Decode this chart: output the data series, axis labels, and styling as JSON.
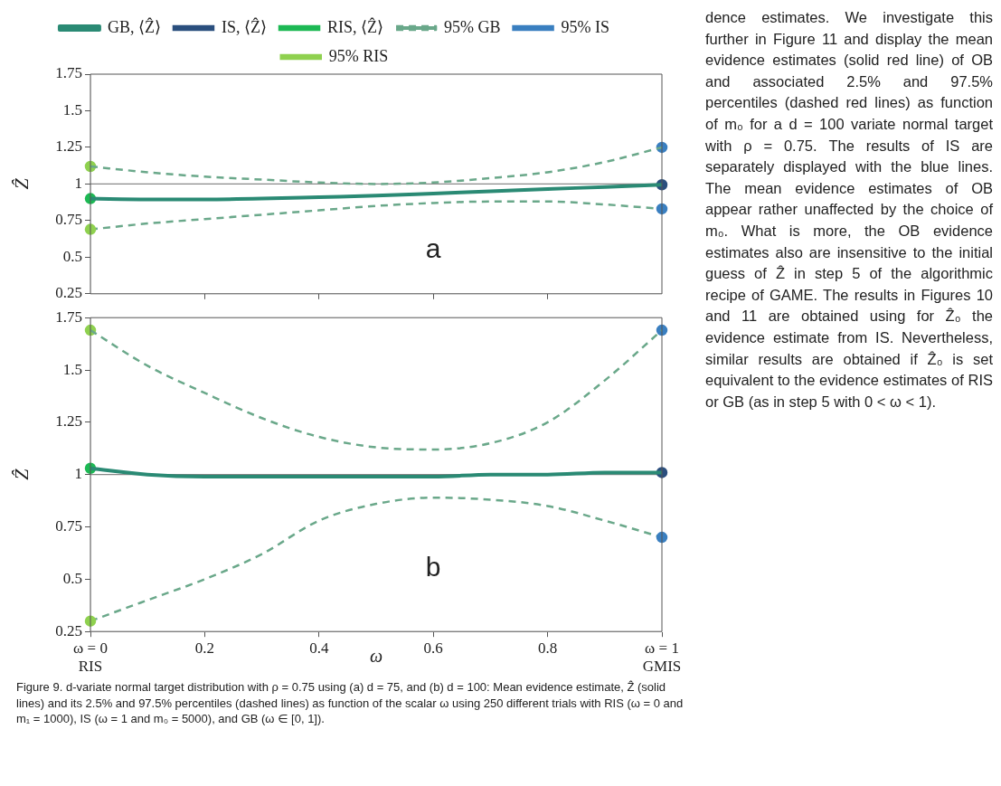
{
  "chart_data": [
    {
      "type": "line",
      "x": [
        0,
        0.1,
        0.2,
        0.3,
        0.4,
        0.5,
        0.6,
        0.7,
        0.8,
        0.9,
        1
      ],
      "ylabel": "Ẑ",
      "xlim": [
        0,
        1
      ],
      "ylim": [
        0.25,
        1.75
      ],
      "xticks": [
        {
          "value": 0.2,
          "label": null
        },
        {
          "value": 0.4,
          "label": null
        },
        {
          "value": 0.6,
          "label": null
        },
        {
          "value": 0.8,
          "label": null
        }
      ],
      "yticks": [
        0.25,
        0.5,
        0.75,
        1,
        1.25,
        1.5,
        1.75
      ],
      "tick_labels": "y",
      "grid": false,
      "legend": "top",
      "ref_lines": [
        {
          "axis": "y",
          "value": 1,
          "color": "#888888"
        }
      ],
      "annotations": [
        "a"
      ],
      "series": [
        {
          "name": "GB, ⟨Ẑ⟩",
          "line_style": "solid",
          "marker": "none",
          "color": "#2a8a74",
          "values": [
            0.9,
            0.895,
            0.895,
            0.9,
            0.91,
            0.92,
            0.935,
            0.95,
            0.965,
            0.98,
            0.995
          ]
        },
        {
          "name": "IS, ⟨Ẑ⟩",
          "type": "scatter",
          "marker": "circle",
          "color": "#2b4f7e",
          "values": [
            null,
            null,
            null,
            null,
            null,
            null,
            null,
            null,
            null,
            null,
            0.995
          ]
        },
        {
          "name": "RIS, ⟨Ẑ⟩",
          "type": "scatter",
          "marker": "circle",
          "color": "#1db954",
          "values": [
            0.9,
            null,
            null,
            null,
            null,
            null,
            null,
            null,
            null,
            null,
            null
          ]
        },
        {
          "name": "95% GB",
          "line_style": "dashed",
          "marker": "none",
          "color": "#6aa88a",
          "values": [
            1.12,
            1.08,
            1.05,
            1.03,
            1.01,
            1.0,
            1.01,
            1.04,
            1.08,
            1.15,
            1.25
          ]
        },
        {
          "name": "95% IS",
          "type": "scatter",
          "marker": "circle",
          "line_style": "dashed",
          "color": "#3a7fc0",
          "values": [
            null,
            null,
            null,
            null,
            null,
            null,
            null,
            null,
            null,
            null,
            1.25
          ]
        },
        {
          "name": "95% RIS",
          "type": "scatter",
          "marker": "circle",
          "line_style": "dashed",
          "color": "#8fd14f",
          "values": [
            1.12,
            null,
            null,
            null,
            null,
            null,
            null,
            null,
            null,
            null,
            null
          ]
        },
        {
          "type": "scatter",
          "marker": "circle",
          "color": "#3a7fc0",
          "values": [
            null,
            null,
            null,
            null,
            null,
            null,
            null,
            null,
            null,
            null,
            0.83
          ]
        },
        {
          "type": "scatter",
          "marker": "circle",
          "color": "#8fd14f",
          "values": [
            0.69,
            null,
            null,
            null,
            null,
            null,
            null,
            null,
            null,
            null,
            null
          ]
        },
        {
          "line_style": "dashed",
          "marker": "none",
          "color": "#6aa88a",
          "values": [
            0.69,
            0.73,
            0.76,
            0.79,
            0.82,
            0.85,
            0.87,
            0.88,
            0.88,
            0.86,
            0.83
          ]
        }
      ]
    },
    {
      "type": "line",
      "x": [
        0,
        0.1,
        0.2,
        0.3,
        0.4,
        0.5,
        0.6,
        0.7,
        0.8,
        0.9,
        1
      ],
      "xlabel": "ω",
      "ylabel": "Ẑ",
      "xlim": [
        0,
        1
      ],
      "ylim": [
        0.25,
        1.75
      ],
      "xticks": [
        {
          "value": 0,
          "label": "ω = 0\nRIS"
        },
        0.2,
        0.4,
        0.6,
        0.8,
        {
          "value": 1,
          "label": "ω = 1\nGMIS"
        }
      ],
      "yticks": [
        0.25,
        0.5,
        0.75,
        1,
        1.25,
        1.5,
        1.75
      ],
      "grid": false,
      "ref_lines": [
        {
          "axis": "y",
          "value": 1,
          "color": "#888888"
        }
      ],
      "annotations": [
        "b",
        "Figure 9. d-variate normal target distribution with ρ = 0.75 using (a) d = 75, and (b) d = 100: Mean evidence estimate, Ẑ (solid lines) and its 2.5% and 97.5% percentiles (dashed lines) as function of the scalar ω using 250 different trials with RIS (ω = 0 and m₁ = 1000), IS (ω = 1 and m₀ = 5000), and GB (ω ∈ [0, 1]).",
        "dence estimates. We investigate this further in Figure 11 and display the mean evidence estimates (solid red line) of OB and associated 2.5% and 97.5% percentiles (dashed red lines) as function of m₀ for a d = 100 variate normal target with ρ = 0.75. The results of IS are separately displayed with the blue lines. The mean evidence estimates of OB appear rather unaffected by the choice of m₀. What is more, the OB evidence estimates also are insensitive to the initial guess of Ẑ in step 5 of the algorithmic recipe of GAME. The results in Figures 10 and 11 are obtained using for Ẑ₀ the evidence estimate from IS. Nevertheless, similar results are obtained if Ẑ₀ is set equivalent to the evidence estimates of RIS or GB (as in step 5 with 0 < ω < 1)."
      ],
      "series": [
        {
          "line_style": "solid",
          "marker": "none",
          "color": "#2a8a74",
          "values": [
            1.03,
            1.0,
            0.99,
            0.99,
            0.99,
            0.99,
            0.99,
            1.0,
            1.0,
            1.01,
            1.01
          ]
        },
        {
          "type": "scatter",
          "marker": "circle",
          "color": "#2b4f7e",
          "values": [
            null,
            null,
            null,
            null,
            null,
            null,
            null,
            null,
            null,
            null,
            1.01
          ]
        },
        {
          "type": "scatter",
          "marker": "circle",
          "color": "#1db954",
          "values": [
            1.03,
            null,
            null,
            null,
            null,
            null,
            null,
            null,
            null,
            null,
            null
          ]
        },
        {
          "line_style": "dashed",
          "marker": "none",
          "color": "#6aa88a",
          "values": [
            1.69,
            1.52,
            1.39,
            1.27,
            1.18,
            1.13,
            1.12,
            1.15,
            1.25,
            1.45,
            1.69
          ]
        },
        {
          "type": "scatter",
          "marker": "circle",
          "color": "#3a7fc0",
          "values": [
            null,
            null,
            null,
            null,
            null,
            null,
            null,
            null,
            null,
            null,
            1.69
          ]
        },
        {
          "type": "scatter",
          "marker": "circle",
          "color": "#8fd14f",
          "values": [
            1.69,
            null,
            null,
            null,
            null,
            null,
            null,
            null,
            null,
            null,
            null
          ]
        },
        {
          "type": "scatter",
          "marker": "circle",
          "color": "#3a7fc0",
          "values": [
            null,
            null,
            null,
            null,
            null,
            null,
            null,
            null,
            null,
            null,
            0.7
          ]
        },
        {
          "type": "scatter",
          "marker": "circle",
          "color": "#8fd14f",
          "values": [
            0.3,
            null,
            null,
            null,
            null,
            null,
            null,
            null,
            null,
            null,
            null
          ]
        },
        {
          "line_style": "dashed",
          "marker": "none",
          "color": "#6aa88a",
          "values": [
            0.3,
            0.4,
            0.5,
            0.62,
            0.78,
            0.86,
            0.89,
            0.88,
            0.85,
            0.78,
            0.7
          ]
        }
      ]
    }
  ]
}
